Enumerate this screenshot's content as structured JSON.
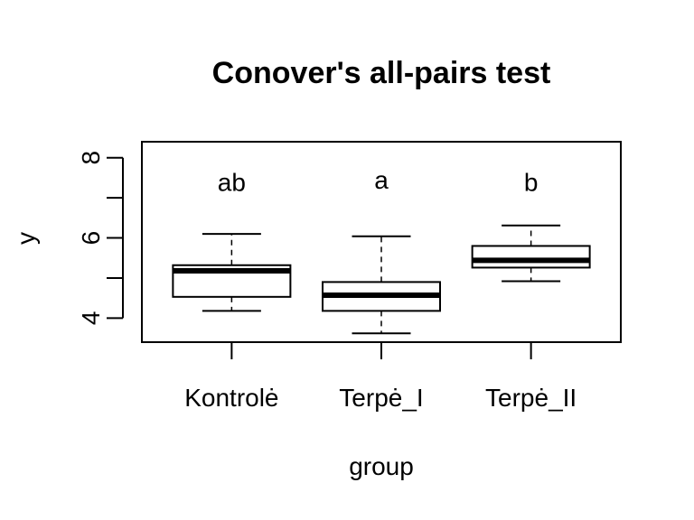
{
  "chart_data": {
    "type": "boxplot",
    "title": "Conover's all-pairs test",
    "xlabel": "group",
    "ylabel": "y",
    "ylim": [
      3.4,
      8.4
    ],
    "y_ticks": [
      4,
      5,
      6,
      7,
      8
    ],
    "y_tick_labels": [
      "4",
      "",
      "6",
      "",
      "8"
    ],
    "categories": [
      "Kontrolė",
      "Terpė_I",
      "Terpė_II"
    ],
    "boxes": [
      {
        "category": "Kontrolė",
        "whisker_low": 4.18,
        "q1": 4.53,
        "median": 5.18,
        "q3": 5.32,
        "whisker_high": 6.1
      },
      {
        "category": "Terpė_I",
        "whisker_low": 3.62,
        "q1": 4.18,
        "median": 4.57,
        "q3": 4.9,
        "whisker_high": 6.04
      },
      {
        "category": "Terpė_II",
        "whisker_low": 4.92,
        "q1": 5.26,
        "median": 5.44,
        "q3": 5.8,
        "whisker_high": 6.31
      }
    ],
    "group_letters": [
      "ab",
      "a",
      "b"
    ],
    "group_letter_y": [
      7.4,
      7.45,
      7.4
    ],
    "grid": false,
    "legend": "none"
  }
}
